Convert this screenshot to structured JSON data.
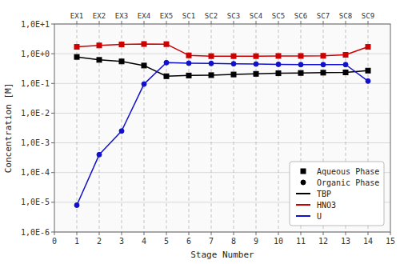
{
  "chart_data": {
    "type": "line",
    "log": "y",
    "xlabel": "Stage Number",
    "ylabel": "Concentration [M]",
    "x": [
      1,
      2,
      3,
      4,
      5,
      6,
      7,
      8,
      9,
      10,
      11,
      12,
      13,
      14
    ],
    "series": [
      {
        "name": "TBP",
        "color": "#000000",
        "marker": "square",
        "values": [
          0.78,
          0.62,
          0.55,
          0.4,
          0.175,
          0.185,
          0.19,
          0.2,
          0.21,
          0.22,
          0.225,
          0.23,
          0.235,
          0.27
        ]
      },
      {
        "name": "HNO3",
        "color": "#cc0000",
        "marker": "square",
        "values": [
          1.7,
          1.9,
          2.05,
          2.12,
          2.1,
          0.88,
          0.83,
          0.83,
          0.83,
          0.84,
          0.84,
          0.85,
          0.92,
          1.7
        ]
      },
      {
        "name": "U",
        "color": "#1111cc",
        "marker": "circle",
        "values": [
          8e-06,
          0.0004,
          0.0025,
          0.095,
          0.5,
          0.48,
          0.47,
          0.46,
          0.45,
          0.44,
          0.43,
          0.43,
          0.43,
          0.12
        ]
      }
    ],
    "marker_legend": [
      {
        "name": "Aqueous Phase",
        "marker": "square",
        "color": "#000000"
      },
      {
        "name": "Organic Phase",
        "marker": "circle",
        "color": "#000000"
      }
    ],
    "xlim": [
      0,
      15
    ],
    "xticks": [
      0,
      1,
      2,
      3,
      4,
      5,
      6,
      7,
      8,
      9,
      10,
      11,
      12,
      13,
      14,
      15
    ],
    "x2lim": [
      0,
      15
    ],
    "x2ticks": [
      {
        "value": 1,
        "label": "EX1"
      },
      {
        "value": 2,
        "label": "EX2"
      },
      {
        "value": 3,
        "label": "EX3"
      },
      {
        "value": 4,
        "label": "EX4"
      },
      {
        "value": 5,
        "label": "EX5"
      },
      {
        "value": 6,
        "label": "SC1"
      },
      {
        "value": 7,
        "label": "SC2"
      },
      {
        "value": 8,
        "label": "SC3"
      },
      {
        "value": 9,
        "label": "SC4"
      },
      {
        "value": 10,
        "label": "SC5"
      },
      {
        "value": 11,
        "label": "SC6"
      },
      {
        "value": 12,
        "label": "SC7"
      },
      {
        "value": 13,
        "label": "SC8"
      },
      {
        "value": 14,
        "label": "SC9"
      }
    ],
    "ylim": [
      1e-06,
      10
    ],
    "yticks": [
      {
        "value": 1e-06,
        "label": "1,0E-6"
      },
      {
        "value": 1e-05,
        "label": "1,0E-5"
      },
      {
        "value": 0.0001,
        "label": "1,0E-4"
      },
      {
        "value": 0.001,
        "label": "1,0E-3"
      },
      {
        "value": 0.01,
        "label": "1,0E-2"
      },
      {
        "value": 0.1,
        "label": "1,0E-1"
      },
      {
        "value": 1.0,
        "label": "1,0E+0"
      },
      {
        "value": 10.0,
        "label": "1,0E+1"
      }
    ],
    "grid": true,
    "legend": "lower right"
  }
}
